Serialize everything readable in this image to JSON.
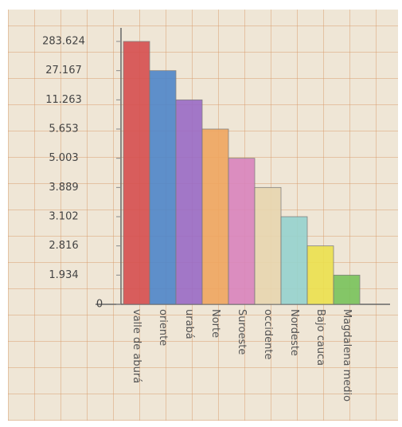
{
  "chart_data": {
    "type": "bar",
    "categories": [
      "valle de aburá",
      "oriente",
      "urabá",
      "Norte",
      "Suroeste",
      "occidente",
      "Nordeste",
      "Bajo cauca",
      "Magdalena medio"
    ],
    "values": [
      283624,
      27167,
      11263,
      5653,
      5003,
      3889,
      3102,
      2816,
      1934
    ],
    "colors": [
      "#d64f4f",
      "#4f86c9",
      "#9a6bc6",
      "#f0a660",
      "#d984bd",
      "#e8d6b0",
      "#96d3cf",
      "#ece14e",
      "#79c35c"
    ],
    "ylim": [
      0,
      283624
    ],
    "yticks": [
      0,
      {
        "value": 1934,
        "label": "1.934"
      },
      {
        "value": 2816,
        "label": "2.816"
      },
      {
        "value": 3102,
        "label": "3.102"
      },
      {
        "value": 3889,
        "label": "3.889"
      },
      {
        "value": 5003,
        "label": "5.003"
      },
      {
        "value": 5653,
        "label": "5.653"
      },
      {
        "value": 11263,
        "label": "11.263"
      },
      {
        "value": 27167,
        "label": "27.167"
      },
      {
        "value": 283624,
        "label": "283.624"
      }
    ]
  }
}
